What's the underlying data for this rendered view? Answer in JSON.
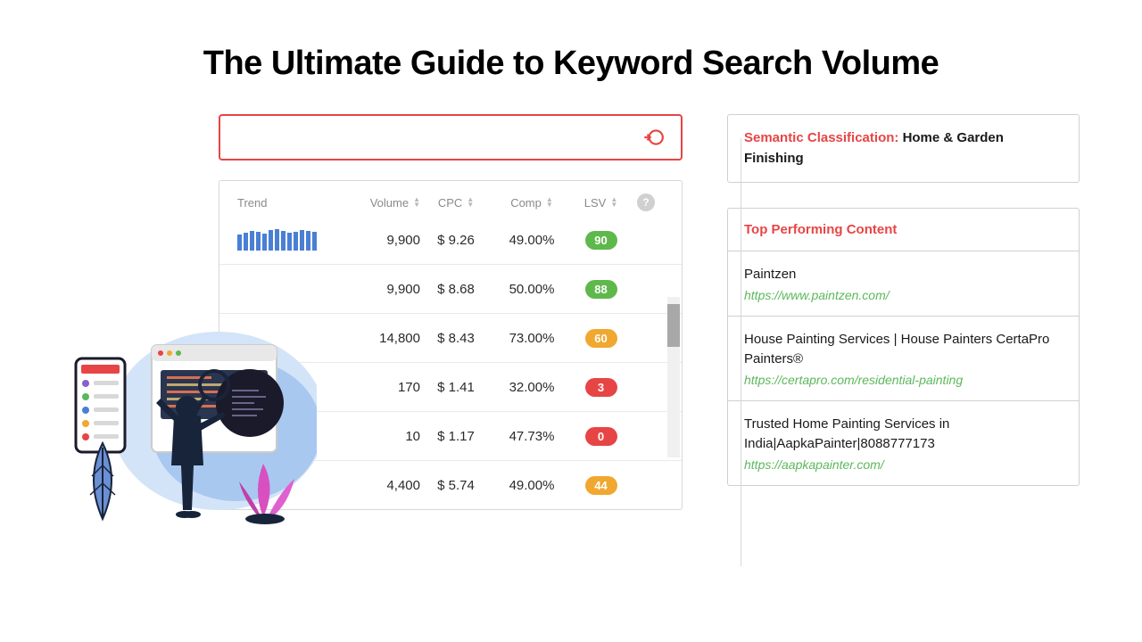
{
  "title": "The Ultimate Guide to Keyword Search Volume",
  "colors": {
    "accent_red": "#e74545",
    "badge_green": "#5fb84c",
    "badge_orange": "#f0a830",
    "badge_red": "#e74545",
    "link_green": "#5bb85b",
    "trend_bar": "#4a7fd4"
  },
  "table": {
    "headers": {
      "trend": "Trend",
      "volume": "Volume",
      "cpc": "CPC",
      "comp": "Comp",
      "lsv": "LSV"
    },
    "rows": [
      {
        "trend_bars": [
          18,
          20,
          22,
          21,
          19,
          23,
          24,
          22,
          20,
          21,
          23,
          22,
          21
        ],
        "volume": "9,900",
        "cpc": "$ 9.26",
        "comp": "49.00%",
        "lsv": "90",
        "lsv_color": "#5fb84c"
      },
      {
        "trend_bars": [],
        "volume": "9,900",
        "cpc": "$ 8.68",
        "comp": "50.00%",
        "lsv": "88",
        "lsv_color": "#5fb84c"
      },
      {
        "trend_bars": [],
        "volume": "14,800",
        "cpc": "$ 8.43",
        "comp": "73.00%",
        "lsv": "60",
        "lsv_color": "#f0a830"
      },
      {
        "trend_bars": [],
        "volume": "170",
        "cpc": "$ 1.41",
        "comp": "32.00%",
        "lsv": "3",
        "lsv_color": "#e74545"
      },
      {
        "trend_bars": [],
        "volume": "10",
        "cpc": "$ 1.17",
        "comp": "47.73%",
        "lsv": "0",
        "lsv_color": "#e74545"
      },
      {
        "trend_bars": [],
        "volume": "4,400",
        "cpc": "$ 5.74",
        "comp": "49.00%",
        "lsv": "44",
        "lsv_color": "#f0a830"
      }
    ]
  },
  "semantic": {
    "label": "Semantic Classification: ",
    "value": "Home & Garden Finishing"
  },
  "top_content": {
    "header": "Top Performing Content",
    "items": [
      {
        "title": "Paintzen",
        "url": "https://www.paintzen.com/"
      },
      {
        "title": "House Painting Services | House Painters CertaPro Painters®",
        "url": "https://certapro.com/residential-painting"
      },
      {
        "title": "Trusted Home Painting Services in India|AapkaPainter|8088777173",
        "url": "https://aapkapainter.com/"
      }
    ]
  }
}
